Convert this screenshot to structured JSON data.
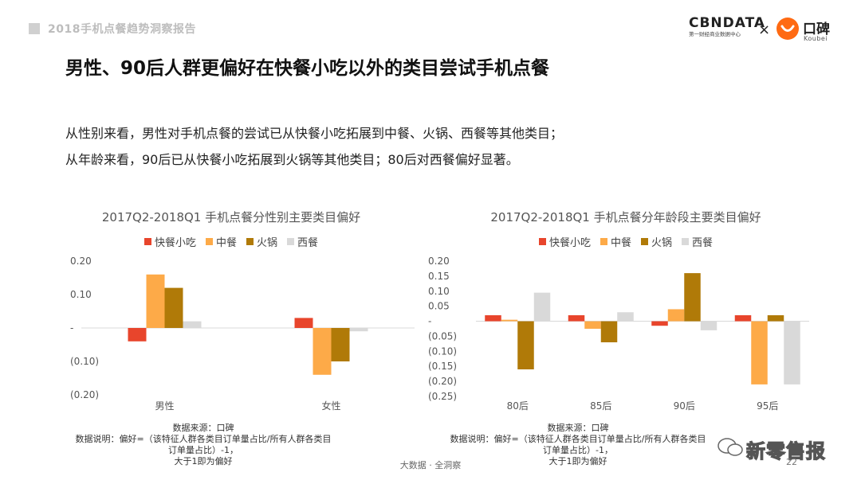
{
  "header": {
    "report_title": "2018手机点餐趋势洞察报告",
    "logo_cbn_word": "CBNDATA",
    "logo_cbn_sub": "第一财经商业数据中心",
    "logo_separator": "×",
    "logo_koubei_cn": "口碑",
    "logo_koubei_en": "Koubei"
  },
  "page_title": "男性、90后人群更偏好在快餐小吃以外的类目尝试手机点餐",
  "description": [
    "从性别来看，男性对手机点餐的尝试已从快餐小吃拓展到中餐、火锅、西餐等其他类目；",
    "从年龄来看，90后已从快餐小吃拓展到火锅等其他类目；80后对西餐偏好显著。"
  ],
  "colors": {
    "快餐小吃": "#e8452c",
    "中餐": "#fdaa48",
    "火锅": "#b07a08",
    "西餐": "#d9d9d9",
    "axis": "#d9d9d9",
    "tick": "#555555"
  },
  "chart_data": [
    {
      "type": "bar",
      "title": "2017Q2-2018Q1 手机点餐分性别主要类目偏好",
      "categories": [
        "男性",
        "女性"
      ],
      "series": [
        {
          "name": "快餐小吃",
          "values": [
            -0.04,
            0.03
          ]
        },
        {
          "name": "中餐",
          "values": [
            0.16,
            -0.14
          ]
        },
        {
          "name": "火锅",
          "values": [
            0.12,
            -0.1
          ]
        },
        {
          "name": "西餐",
          "values": [
            0.02,
            -0.01
          ]
        }
      ],
      "ylim": [
        -0.2,
        0.2
      ],
      "yticks": [
        0.2,
        0.1,
        0,
        -0.1,
        -0.2
      ],
      "ytick_labels": [
        "0.20",
        "0.10",
        "-",
        "(0.10)",
        "(0.20)"
      ],
      "legend": "top-center",
      "grid": false
    },
    {
      "type": "bar",
      "title": "2017Q2-2018Q1 手机点餐分年龄段主要类目偏好",
      "categories": [
        "80后",
        "85后",
        "90后",
        "95后"
      ],
      "series": [
        {
          "name": "快餐小吃",
          "values": [
            0.02,
            0.02,
            -0.015,
            0.02
          ]
        },
        {
          "name": "中餐",
          "values": [
            0.005,
            -0.025,
            0.04,
            -0.21
          ]
        },
        {
          "name": "火锅",
          "values": [
            -0.16,
            -0.07,
            0.16,
            0.02
          ]
        },
        {
          "name": "西餐",
          "values": [
            0.095,
            0.03,
            -0.03,
            -0.21
          ]
        }
      ],
      "ylim": [
        -0.25,
        0.2
      ],
      "yticks": [
        0.2,
        0.15,
        0.1,
        0.05,
        0,
        -0.05,
        -0.1,
        -0.15,
        -0.2,
        -0.25
      ],
      "ytick_labels": [
        "0.20",
        "0.15",
        "0.10",
        "0.05",
        "-",
        "(0.05)",
        "(0.10)",
        "(0.15)",
        "(0.20)",
        "(0.25)"
      ],
      "legend": "top-center",
      "grid": false
    }
  ],
  "source_left": {
    "line1": "数据来源：口碑",
    "line2": "数据说明：偏好=（该特征人群各类目订单量占比/所有人群各类目订单量占比）-1，",
    "line3": "大于1即为偏好"
  },
  "source_right": {
    "line1": "数据来源：口碑",
    "line2": "数据说明：偏好=（该特征人群各类目订单量占比/所有人群各类目订单量占比）-1，",
    "line3": "大于1即为偏好"
  },
  "footer": "大数据 · 全洞察",
  "page_number": "22",
  "wechat_text": "新零售报"
}
